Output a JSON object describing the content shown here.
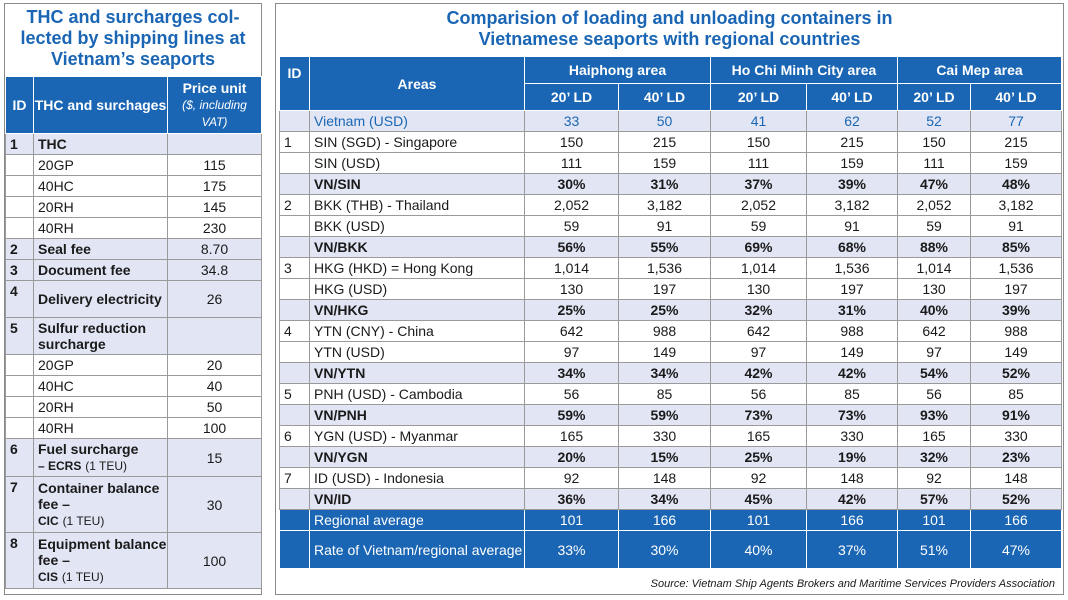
{
  "left": {
    "title": "THC and surcharges col-lected by shipping lines at Vietnam’s seaports",
    "headers": {
      "id": "ID",
      "name": "THC and surchages",
      "price": "Price unit",
      "price_sub": "($, including VAT)"
    },
    "s1": {
      "id": "1",
      "name": "THC"
    },
    "r1a": {
      "name": "20GP",
      "value": "115"
    },
    "r1b": {
      "name": "40HC",
      "value": "175"
    },
    "r1c": {
      "name": "20RH",
      "value": "145"
    },
    "r1d": {
      "name": "40RH",
      "value": "230"
    },
    "s2": {
      "id": "2",
      "name": "Seal fee",
      "value": "8.70"
    },
    "s3": {
      "id": "3",
      "name": "Document fee",
      "value": "34.8"
    },
    "s4": {
      "id": "4",
      "name": "Delivery electricity",
      "value": "26"
    },
    "s5": {
      "id": "5",
      "name": "Sulfur reduction surcharge"
    },
    "r5a": {
      "name": "20GP",
      "value": "20"
    },
    "r5b": {
      "name": "40HC",
      "value": "40"
    },
    "r5c": {
      "name": "20RH",
      "value": "50"
    },
    "r5d": {
      "name": "40RH",
      "value": "100"
    },
    "s6": {
      "id": "6",
      "name": "Fuel surcharge",
      "code": "– ECRS",
      "unit": "(1 TEU)",
      "value": "15"
    },
    "s7": {
      "id": "7",
      "name": "Container balance fee –",
      "code": "CIC",
      "unit": "(1 TEU)",
      "value": "30"
    },
    "s8": {
      "id": "8",
      "name": "Equipment balance fee –",
      "code": "CIS",
      "unit": "(1 TEU)",
      "value": "100"
    }
  },
  "right": {
    "title_line1": "Comparision of loading and unloading containers in",
    "title_line2": "Vietnamese seaports with regional countries",
    "headers": {
      "id": "ID",
      "areas": "Areas",
      "haiphong": "Haiphong area",
      "hcmc": "Ho Chi Minh City area",
      "caimep": "Cai Mep area",
      "ld20": "20’ LD",
      "ld40": "40’ LD"
    },
    "vietnam": {
      "area": "Vietnam (USD)",
      "v": [
        "33",
        "50",
        "41",
        "62",
        "52",
        "77"
      ]
    },
    "rows": [
      {
        "id": "1",
        "area": "SIN (SGD) - Singapore",
        "v": [
          "150",
          "215",
          "150",
          "215",
          "150",
          "215"
        ]
      },
      {
        "id": "",
        "area": "SIN (USD)",
        "v": [
          "111",
          "159",
          "111",
          "159",
          "111",
          "159"
        ]
      },
      {
        "id": "",
        "area": "VN/SIN",
        "v": [
          "30%",
          "31%",
          "37%",
          "39%",
          "47%",
          "48%"
        ]
      },
      {
        "id": "2",
        "area": "BKK (THB) - Thailand",
        "v": [
          "2,052",
          "3,182",
          "2,052",
          "3,182",
          "2,052",
          "3,182"
        ]
      },
      {
        "id": "",
        "area": "BKK (USD)",
        "v": [
          "59",
          "91",
          "59",
          "91",
          "59",
          "91"
        ]
      },
      {
        "id": "",
        "area": "VN/BKK",
        "v": [
          "56%",
          "55%",
          "69%",
          "68%",
          "88%",
          "85%"
        ]
      },
      {
        "id": "3",
        "area": "HKG (HKD) = Hong Kong",
        "v": [
          "1,014",
          "1,536",
          "1,014",
          "1,536",
          "1,014",
          "1,536"
        ]
      },
      {
        "id": "",
        "area": "HKG (USD)",
        "v": [
          "130",
          "197",
          "130",
          "197",
          "130",
          "197"
        ]
      },
      {
        "id": "",
        "area": "VN/HKG",
        "v": [
          "25%",
          "25%",
          "32%",
          "31%",
          "40%",
          "39%"
        ]
      },
      {
        "id": "4",
        "area": "YTN (CNY) - China",
        "v": [
          "642",
          "988",
          "642",
          "988",
          "642",
          "988"
        ]
      },
      {
        "id": "",
        "area": "YTN (USD)",
        "v": [
          "97",
          "149",
          "97",
          "149",
          "97",
          "149"
        ]
      },
      {
        "id": "",
        "area": "VN/YTN",
        "v": [
          "34%",
          "34%",
          "42%",
          "42%",
          "54%",
          "52%"
        ]
      },
      {
        "id": "5",
        "area": "PNH (USD) - Cambodia",
        "v": [
          "56",
          "85",
          "56",
          "85",
          "56",
          "85"
        ]
      },
      {
        "id": "",
        "area": "VN/PNH",
        "v": [
          "59%",
          "59%",
          "73%",
          "73%",
          "93%",
          "91%"
        ]
      },
      {
        "id": "6",
        "area": "YGN (USD) - Myanmar",
        "v": [
          "165",
          "330",
          "165",
          "330",
          "165",
          "330"
        ]
      },
      {
        "id": "",
        "area": "VN/YGN",
        "v": [
          "20%",
          "15%",
          "25%",
          "19%",
          "32%",
          "23%"
        ]
      },
      {
        "id": "7",
        "area": "ID (USD) - Indonesia",
        "v": [
          "92",
          "148",
          "92",
          "148",
          "92",
          "148"
        ]
      },
      {
        "id": "",
        "area": "VN/ID",
        "v": [
          "36%",
          "34%",
          "45%",
          "42%",
          "57%",
          "52%"
        ]
      }
    ],
    "regional_avg": {
      "area": "Regional average",
      "v": [
        "101",
        "166",
        "101",
        "166",
        "101",
        "166"
      ]
    },
    "rate": {
      "area": "Rate of Vietnam/regional average",
      "v": [
        "33%",
        "30%",
        "40%",
        "37%",
        "51%",
        "47%"
      ]
    },
    "source": "Source: Vietnam Ship Agents Brokers and Maritime Services Providers Association"
  }
}
